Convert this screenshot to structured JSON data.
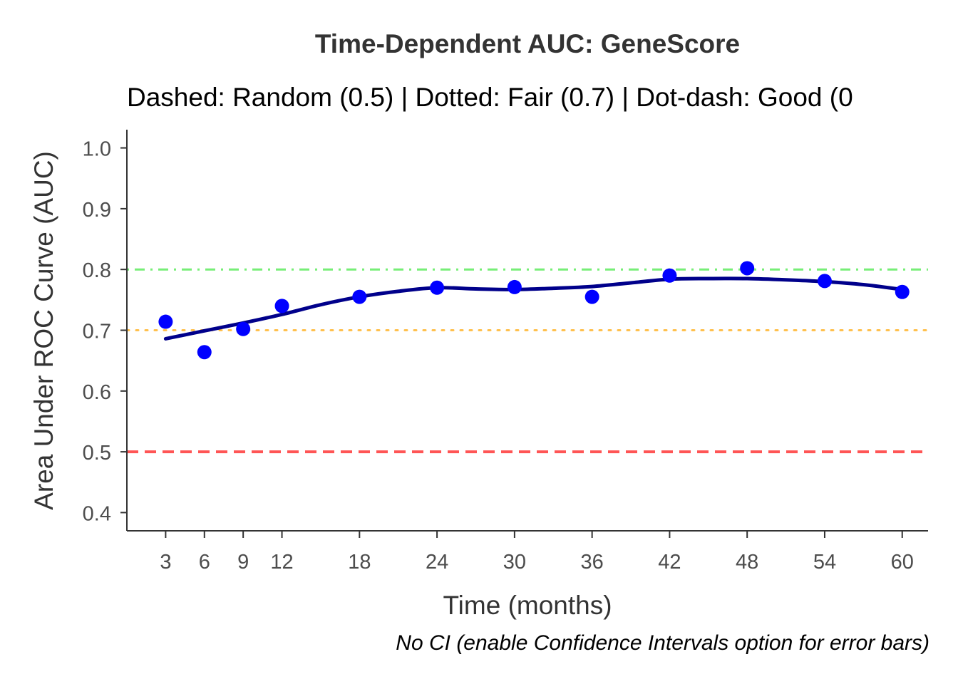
{
  "chart_data": {
    "type": "scatter",
    "title": "Time-Dependent AUC: GeneScore",
    "subtitle": "Dashed: Random (0.5) | Dotted: Fair (0.7) | Dot-dash: Good (0",
    "caption": "No CI (enable Confidence Intervals option for error bars)",
    "xlabel": "Time (months)",
    "ylabel": "Area Under ROC Curve (AUC)",
    "xlim": [
      0,
      62
    ],
    "ylim": [
      0.37,
      1.03
    ],
    "x_ticks": [
      3,
      6,
      9,
      12,
      18,
      24,
      30,
      36,
      42,
      48,
      54,
      60
    ],
    "y_ticks": [
      0.4,
      0.5,
      0.6,
      0.7,
      0.8,
      0.9,
      1.0
    ],
    "y_tick_labels": [
      "0.4",
      "0.5",
      "0.6",
      "0.7",
      "0.8",
      "0.9",
      "1.0"
    ],
    "grid": false,
    "series": [
      {
        "x": [
          3,
          6,
          9,
          12,
          18,
          24,
          30,
          36,
          42,
          48,
          54,
          60
        ],
        "values": [
          0.714,
          0.664,
          0.702,
          0.74,
          0.755,
          0.77,
          0.771,
          0.755,
          0.79,
          0.802,
          0.781,
          0.763
        ],
        "color": "#0000ff"
      }
    ],
    "smooth_line": {
      "x": [
        3,
        6,
        9,
        12,
        15,
        18,
        21,
        24,
        27,
        30,
        33,
        36,
        39,
        42,
        45,
        48,
        51,
        54,
        57,
        60
      ],
      "values": [
        0.686,
        0.699,
        0.712,
        0.726,
        0.742,
        0.755,
        0.764,
        0.77,
        0.768,
        0.767,
        0.769,
        0.772,
        0.778,
        0.784,
        0.785,
        0.785,
        0.783,
        0.78,
        0.775,
        0.767
      ],
      "color": "#00008b"
    },
    "reference_lines": [
      {
        "y": 0.5,
        "style": "dashed",
        "color": "#ff5555"
      },
      {
        "y": 0.7,
        "style": "dotted",
        "color": "#ffc04d"
      },
      {
        "y": 0.8,
        "style": "dot-dash",
        "color": "#77ee77"
      }
    ],
    "axis_color": "#333333"
  }
}
